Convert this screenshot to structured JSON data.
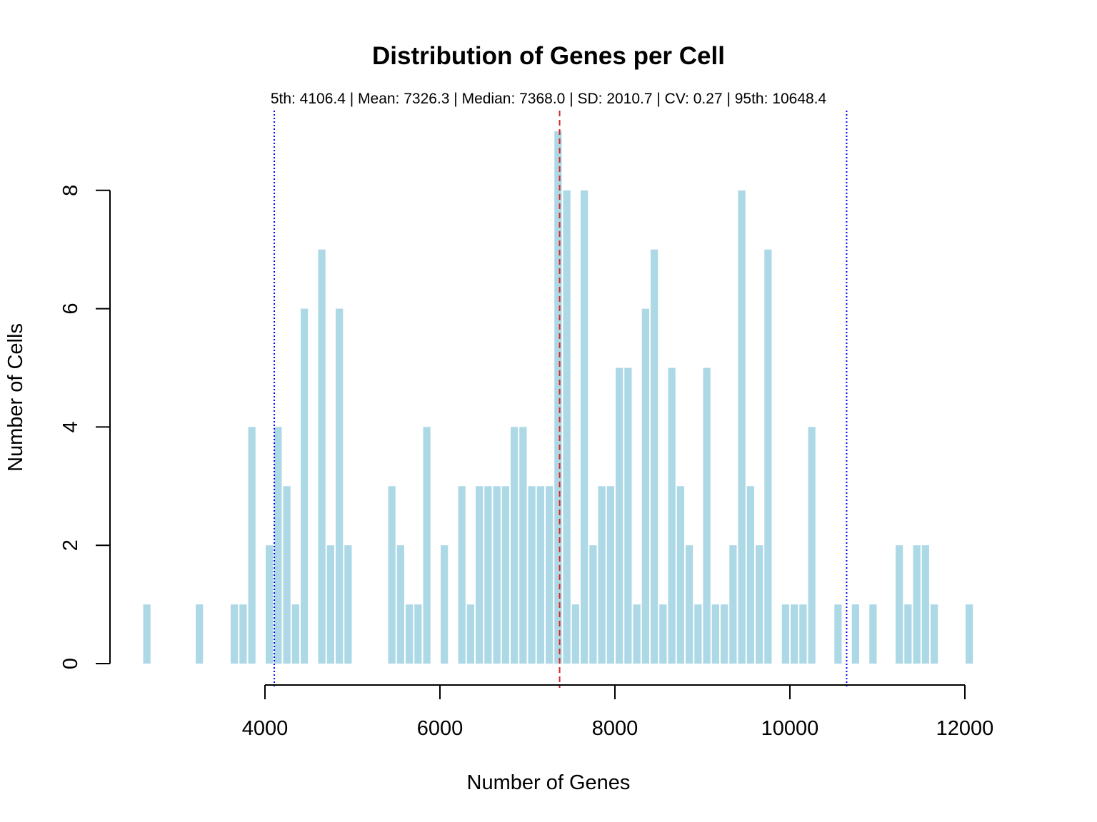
{
  "chart_data": {
    "type": "bar",
    "title": "Distribution of Genes per Cell",
    "subtitle": "5th: 4106.4 | Mean: 7326.3 | Median: 7368.0 | SD: 2010.7 | CV: 0.27 | 95th: 10648.4",
    "xlabel": "Number of Genes",
    "ylabel": "Number of Cells",
    "xlim": [
      2650,
      11950
    ],
    "ylim": [
      0,
      9
    ],
    "x_ticks": [
      4000,
      6000,
      8000,
      10000,
      12000
    ],
    "x_tick_labels": [
      "4000",
      "6000",
      "8000",
      "10000",
      "12000"
    ],
    "y_ticks": [
      0,
      2,
      4,
      6,
      8
    ],
    "y_tick_labels": [
      "0",
      "2",
      "4",
      "6",
      "8"
    ],
    "bin_width": 100,
    "bins_start": 2600,
    "bar_color": "#add8e6",
    "counts": [
      1,
      0,
      0,
      0,
      0,
      0,
      1,
      0,
      0,
      0,
      1,
      1,
      4,
      0,
      2,
      4,
      3,
      1,
      6,
      0,
      7,
      2,
      6,
      2,
      0,
      0,
      0,
      0,
      3,
      2,
      1,
      1,
      4,
      0,
      2,
      0,
      3,
      1,
      3,
      3,
      3,
      3,
      4,
      4,
      3,
      3,
      3,
      9,
      8,
      1,
      8,
      2,
      3,
      3,
      5,
      5,
      1,
      6,
      7,
      1,
      5,
      3,
      2,
      1,
      5,
      1,
      1,
      2,
      8,
      3,
      2,
      7,
      0,
      1,
      1,
      1,
      4,
      0,
      0,
      1,
      0,
      1,
      0,
      1,
      0,
      0,
      2,
      1,
      2,
      2,
      1,
      0,
      0,
      0,
      1
    ],
    "reference_lines": [
      {
        "value": 4106.4,
        "color": "#0000ff",
        "style": "dotted"
      },
      {
        "value": 7368.0,
        "color": "#d62728",
        "style": "dashed"
      },
      {
        "value": 10648.4,
        "color": "#0000ff",
        "style": "dotted"
      }
    ],
    "grid": false,
    "legend": "none"
  }
}
